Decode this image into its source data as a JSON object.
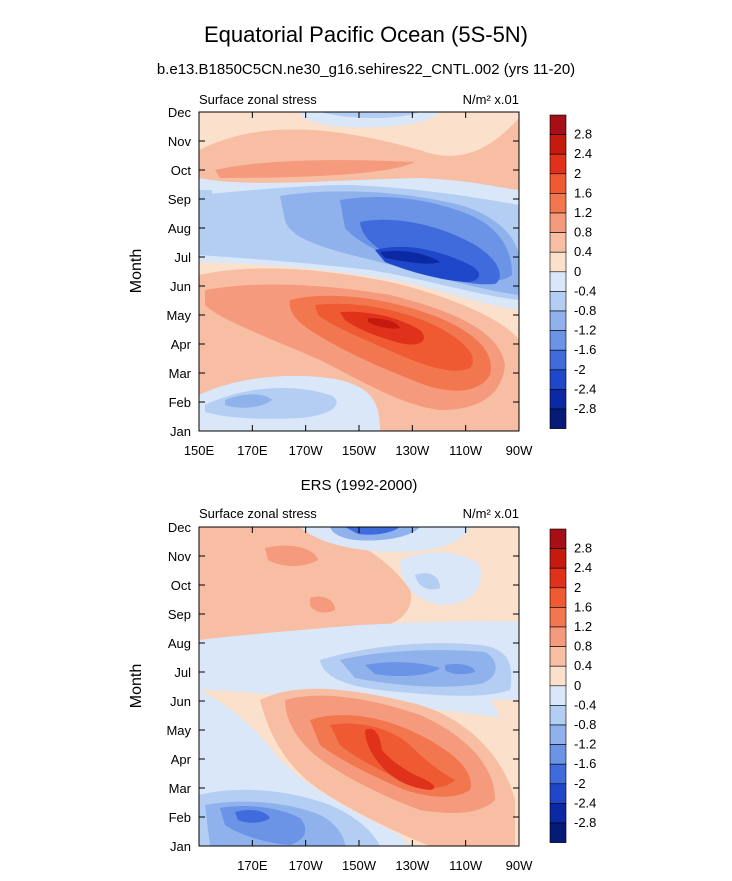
{
  "figure": {
    "title": "Equatorial Pacific Ocean (5S-5N)",
    "subtitle": "b.e13.B1850C5CN.ne30_g16.sehires22_CNTL.002 (yrs 11-20)"
  },
  "colorbar": {
    "levels": [
      "2.8",
      "2.4",
      "2",
      "1.6",
      "1.2",
      "0.8",
      "0.4",
      "0",
      "-0.4",
      "-0.8",
      "-1.2",
      "-1.6",
      "-2",
      "-2.4",
      "-2.8"
    ],
    "colors": [
      "#a50f15",
      "#c61a0e",
      "#e0321a",
      "#ef5a32",
      "#f2774f",
      "#f59a7c",
      "#f8bea3",
      "#fbe0cc",
      "#d9e7f8",
      "#b4cdf2",
      "#8fb1ec",
      "#6b93e6",
      "#3f6bdc",
      "#1f47c9",
      "#0a29a3",
      "#061a78"
    ]
  },
  "chart_data": [
    {
      "type": "heatmap",
      "title": "",
      "left_label": "Surface zonal stress",
      "right_label": "N/m² x.01",
      "ylabel": "Month",
      "xlabel": "",
      "x_ticks": [
        "150E",
        "170E",
        "170W",
        "150W",
        "130W",
        "110W",
        "90W"
      ],
      "y_ticks": [
        "Jan",
        "Feb",
        "Mar",
        "Apr",
        "May",
        "Jun",
        "Jul",
        "Aug",
        "Sep",
        "Oct",
        "Nov",
        "Dec"
      ],
      "xlim": [
        150,
        270
      ],
      "units": "N/m2 x.01",
      "features": [
        {
          "lon": 222,
          "month": 4.3,
          "value": 2.6
        },
        {
          "lon": 235,
          "month": 4.0,
          "value": 2.0
        },
        {
          "lon": 200,
          "month": 4.5,
          "value": 1.2
        },
        {
          "lon": 232,
          "month": 6.9,
          "value": -2.6
        },
        {
          "lon": 220,
          "month": 7.4,
          "value": -2.0
        },
        {
          "lon": 255,
          "month": 6.7,
          "value": -1.6
        },
        {
          "lon": 165,
          "month": 1.0,
          "value": -1.0
        },
        {
          "lon": 200,
          "month": 9.7,
          "value": 0.8
        },
        {
          "lon": 222,
          "month": 11.9,
          "value": -0.6
        }
      ]
    },
    {
      "type": "heatmap",
      "title": "ERS (1992-2000)",
      "left_label": "Surface zonal stress",
      "right_label": "N/m² x.01",
      "ylabel": "Month",
      "xlabel": "",
      "x_ticks": [
        "",
        "170E",
        "170W",
        "150W",
        "130W",
        "110W",
        "90W"
      ],
      "y_ticks": [
        "Jan",
        "Feb",
        "Mar",
        "Apr",
        "May",
        "Jun",
        "Jul",
        "Aug",
        "Sep",
        "Oct",
        "Nov",
        "Dec"
      ],
      "xlim": [
        150,
        270
      ],
      "units": "N/m2 x.01",
      "features": [
        {
          "lon": 218,
          "month": 3.6,
          "value": 2.2
        },
        {
          "lon": 232,
          "month": 2.7,
          "value": 1.8
        },
        {
          "lon": 225,
          "month": 3.5,
          "value": 1.2
        },
        {
          "lon": 180,
          "month": 0.8,
          "value": -1.8
        },
        {
          "lon": 240,
          "month": 6.3,
          "value": -1.2
        },
        {
          "lon": 225,
          "month": 11.9,
          "value": -1.2
        },
        {
          "lon": 180,
          "month": 10.6,
          "value": 0.8
        }
      ]
    }
  ]
}
